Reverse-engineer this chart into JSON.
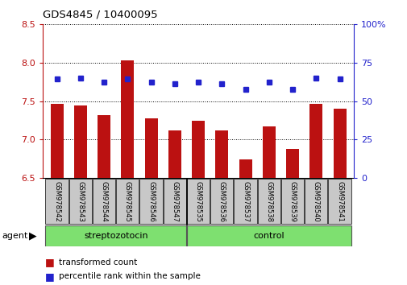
{
  "title": "GDS4845 / 10400095",
  "samples": [
    "GSM978542",
    "GSM978543",
    "GSM978544",
    "GSM978545",
    "GSM978546",
    "GSM978547",
    "GSM978535",
    "GSM978536",
    "GSM978537",
    "GSM978538",
    "GSM978539",
    "GSM978540",
    "GSM978541"
  ],
  "red_values": [
    7.47,
    7.44,
    7.32,
    8.03,
    7.28,
    7.12,
    7.25,
    7.12,
    6.74,
    7.17,
    6.88,
    7.47,
    7.4
  ],
  "blue_values": [
    7.79,
    7.8,
    7.75,
    7.79,
    7.75,
    7.73,
    7.75,
    7.73,
    7.65,
    7.75,
    7.65,
    7.8,
    7.79
  ],
  "ylim_left": [
    6.5,
    8.5
  ],
  "ylim_right": [
    0,
    100
  ],
  "yticks_left": [
    6.5,
    7.0,
    7.5,
    8.0,
    8.5
  ],
  "yticks_right": [
    0,
    25,
    50,
    75,
    100
  ],
  "ytick_right_labels": [
    "0",
    "25",
    "50",
    "75",
    "100%"
  ],
  "group1_label": "streptozotocin",
  "group2_label": "control",
  "group1_count": 6,
  "group2_count": 7,
  "legend_red": "transformed count",
  "legend_blue": "percentile rank within the sample",
  "agent_label": "agent",
  "bar_color": "#BB1111",
  "dot_color": "#2222CC",
  "group_bg_color": "#7EE070",
  "tick_label_bg": "#C8C8C8",
  "background_color": "#FFFFFF"
}
